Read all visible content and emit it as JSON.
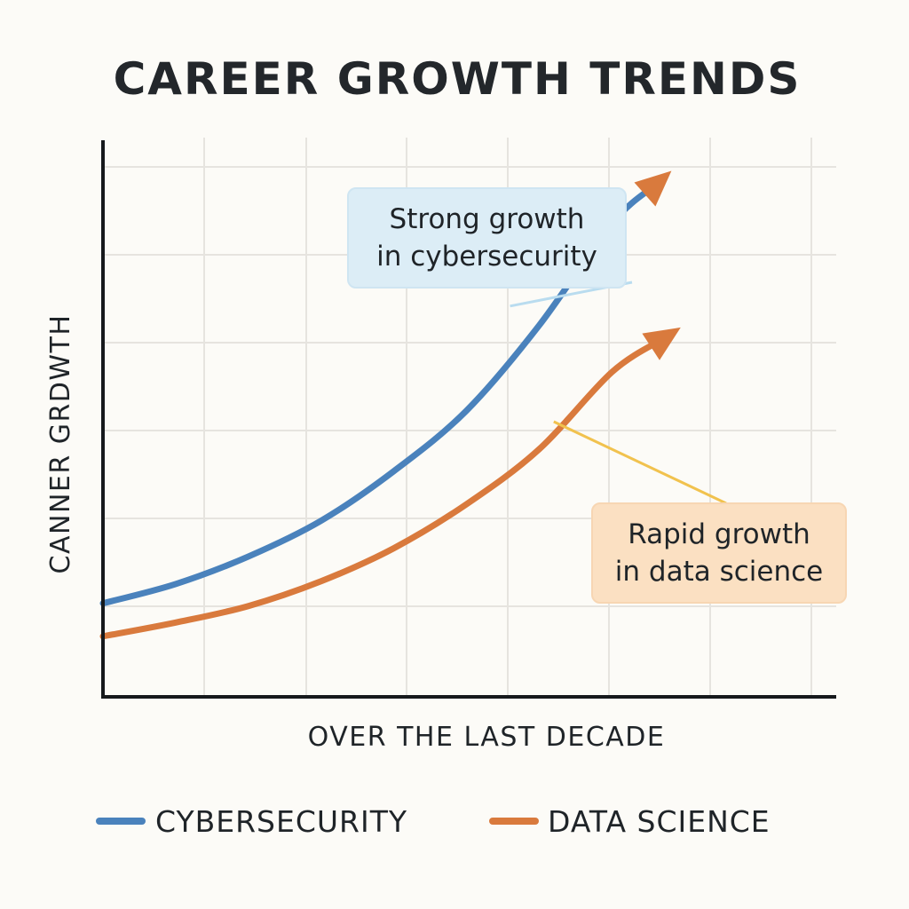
{
  "colors": {
    "background": "#fcfbf7",
    "cybersecurity": "#4a82bc",
    "data_science": "#d97a3d",
    "annot_blue_fill": "#dcedf6",
    "annot_blue_stroke": "#cfe5f2",
    "annot_orange_fill": "#fbe0c2",
    "annot_orange_stroke": "#f7d6b3",
    "annot_blue_leader": "#b9dcef",
    "annot_orange_leader": "#f1c24e"
  },
  "chart_data": {
    "type": "line",
    "title": "CAREER GROWTH TRENDS",
    "xlabel": "OVER THE LAST DECADE",
    "ylabel": "CANNER GRDWTH",
    "xlim": [
      0,
      10
    ],
    "ylim": [
      0,
      10
    ],
    "grid": true,
    "legend_position": "bottom",
    "series": [
      {
        "name": "CYBERSECURITY",
        "color_key": "cybersecurity",
        "x": [
          0,
          1,
          2,
          3,
          4,
          5,
          6,
          7,
          7.6
        ],
        "y": [
          1.7,
          2.05,
          2.55,
          3.2,
          4.1,
          5.2,
          6.75,
          8.6,
          9.3
        ]
      },
      {
        "name": "DATA SCIENCE",
        "color_key": "data_science",
        "x": [
          0,
          1,
          2,
          3,
          4,
          5,
          6,
          7,
          7.7
        ],
        "y": [
          1.1,
          1.35,
          1.65,
          2.1,
          2.7,
          3.5,
          4.5,
          5.9,
          6.5
        ]
      }
    ],
    "annotations": [
      {
        "lines": [
          "Strong growth",
          "in cybersecurity"
        ],
        "series": "CYBERSECURITY",
        "anchor_x": 5.6,
        "anchor_y": 7.1,
        "style": "blue"
      },
      {
        "lines": [
          "Rapid growth",
          "in data science"
        ],
        "series": "DATA SCIENCE",
        "anchor_x": 6.2,
        "anchor_y": 5.0,
        "style": "orange"
      }
    ]
  }
}
